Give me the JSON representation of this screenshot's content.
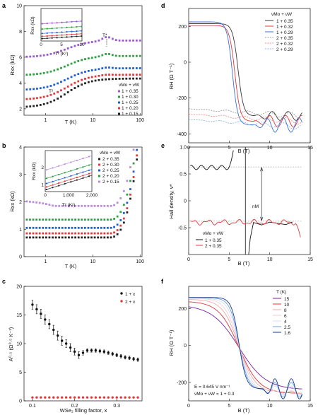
{
  "panels": {
    "a": "a",
    "b": "b",
    "c": "c",
    "d": "d",
    "e": "e",
    "f": "f"
  },
  "chart_data": [
    {
      "panel": "a",
      "type": "scatter",
      "xlabel": "T (K)",
      "ylabel": "Rxx (kΩ)",
      "xscale": "log",
      "xlim": [
        0.35,
        110
      ],
      "ylim": [
        1.5,
        10
      ],
      "xticks": [
        "1",
        "10",
        "100"
      ],
      "yticks": [
        "2",
        "4",
        "6",
        "8",
        "10"
      ],
      "legend_title": "νMo + νW",
      "legend_position": "right",
      "annotations": [
        "T*",
        "T²"
      ],
      "series": [
        {
          "name": "1 + 0.35",
          "color": "#9b59d0",
          "base": 6.0,
          "high": 7.3,
          "bump": 0.3
        },
        {
          "name": "1 + 0.30",
          "color": "#2ea043",
          "base": 4.6,
          "high": 6.1,
          "bump": 0.2
        },
        {
          "name": "1 + 0.25",
          "color": "#1f5fd6",
          "base": 3.45,
          "high": 5.15,
          "bump": 0.1
        },
        {
          "name": "1 + 0.20",
          "color": "#e0383b",
          "base": 2.7,
          "high": 4.65,
          "bump": 0.05
        },
        {
          "name": "1 + 0.15",
          "color": "#222222",
          "base": 2.1,
          "high": 4.35,
          "bump": 0
        }
      ],
      "inset": {
        "xlabel": "T² (K²)",
        "ylabel": "Rxx (kΩ)",
        "xticks": [
          "0",
          "5",
          "10"
        ],
        "xlim": [
          0,
          10
        ],
        "ylim": [
          1.5,
          10
        ]
      }
    },
    {
      "panel": "b",
      "type": "scatter",
      "xlabel": "T (K)",
      "ylabel": "Rxx (kΩ)",
      "xscale": "log",
      "xlim": [
        0.35,
        110
      ],
      "ylim": [
        0,
        4
      ],
      "xticks": [
        "1",
        "10",
        "100"
      ],
      "yticks": [
        "0",
        "1",
        "2",
        "3",
        "4"
      ],
      "legend_title": "νMo + νW",
      "series": [
        {
          "name": "2 + 0.35",
          "color": "#222222",
          "base": 0.7
        },
        {
          "name": "2 + 0.30",
          "color": "#e0383b",
          "base": 0.85
        },
        {
          "name": "2 + 0.25",
          "color": "#1f5fd6",
          "base": 1.05
        },
        {
          "name": "2 + 0.20",
          "color": "#2ea043",
          "base": 1.35
        },
        {
          "name": "2 + 0.15",
          "color": "#b98ce0",
          "base": 1.85
        }
      ],
      "inset": {
        "xlabel": "T² (K²)",
        "ylabel": "Rxx (kΩ)",
        "xticks": [
          "0",
          "1,000",
          "2,000"
        ],
        "yticks": [
          "1",
          "2"
        ],
        "xlim": [
          0,
          2000
        ]
      }
    },
    {
      "panel": "c",
      "type": "scatter",
      "xlabel": "WSe₂ filling factor, x",
      "ylabel": "A⁰·⁵ (Ω⁰·⁵ K⁻¹)",
      "xlim": [
        0.08,
        0.36
      ],
      "ylim": [
        0,
        20
      ],
      "xticks": [
        "0.1",
        "0.2",
        "0.3"
      ],
      "yticks": [
        "0",
        "5",
        "10",
        "15",
        "20"
      ],
      "legend_position": "top-right",
      "series": [
        {
          "name": "1 + x",
          "color": "#111111",
          "x": [
            0.1,
            0.11,
            0.12,
            0.13,
            0.14,
            0.15,
            0.16,
            0.17,
            0.18,
            0.19,
            0.2,
            0.21,
            0.22,
            0.23,
            0.24,
            0.25,
            0.26,
            0.27,
            0.28,
            0.29,
            0.3,
            0.31,
            0.32,
            0.33,
            0.34,
            0.35
          ],
          "y": [
            16.8,
            16.0,
            15.2,
            14.2,
            13.4,
            12.4,
            11.4,
            10.5,
            10.0,
            9.3,
            8.6,
            8.0,
            8.4,
            8.8,
            8.8,
            8.8,
            8.7,
            8.6,
            8.4,
            8.2,
            8.0,
            7.8,
            7.6,
            7.5,
            7.3,
            7.2
          ],
          "err": [
            0.8,
            0.8,
            0.8,
            0.8,
            0.8,
            0.8,
            0.8,
            0.8,
            0.7,
            0.7,
            0.6,
            0.6,
            0.4,
            0.3,
            0.3,
            0.3,
            0.3,
            0.3,
            0.3,
            0.3,
            0.3,
            0.3,
            0.3,
            0.3,
            0.3,
            0.3
          ]
        },
        {
          "name": "2 + x",
          "color": "#e0383b",
          "x": [
            0.1,
            0.11,
            0.12,
            0.13,
            0.14,
            0.15,
            0.16,
            0.17,
            0.18,
            0.19,
            0.2,
            0.21,
            0.22,
            0.23,
            0.24,
            0.25,
            0.26,
            0.27,
            0.28,
            0.29,
            0.3,
            0.31,
            0.32,
            0.33,
            0.34,
            0.35
          ],
          "y": [
            0.6,
            0.6,
            0.6,
            0.6,
            0.6,
            0.6,
            0.6,
            0.6,
            0.6,
            0.6,
            0.6,
            0.6,
            0.6,
            0.6,
            0.6,
            0.6,
            0.6,
            0.6,
            0.6,
            0.6,
            0.6,
            0.6,
            0.6,
            0.6,
            0.6,
            0.6
          ]
        }
      ]
    },
    {
      "panel": "d",
      "type": "line",
      "xlabel": "B (T)",
      "ylabel": "RH (Ω T⁻¹)",
      "xlim": [
        0,
        15
      ],
      "ylim": [
        -450,
        300
      ],
      "xticks": [
        "0",
        "5",
        "10",
        "15"
      ],
      "yticks": [
        "-400",
        "-200",
        "0",
        "200"
      ],
      "legend_title": "νMo + νW",
      "legend_position": "top-right",
      "series": [
        {
          "name": "1 + 0.35",
          "color": "#3a3a3a",
          "dash": "",
          "start": 215,
          "end": -300,
          "bc": 6.1
        },
        {
          "name": "1 + 0.32",
          "color": "#e0383b",
          "dash": "",
          "start": 205,
          "end": -330,
          "bc": 5.7
        },
        {
          "name": "1 + 0.29",
          "color": "#3b6fd6",
          "dash": "",
          "start": 225,
          "end": -350,
          "bc": 5.4
        },
        {
          "name": "2 + 0.35",
          "color": "#9a9a9a",
          "dash": "2,1.5",
          "start": -260,
          "end": -300,
          "bc": 0
        },
        {
          "name": "2 + 0.32",
          "color": "#f08a8c",
          "dash": "2,1.5",
          "start": -290,
          "end": -330,
          "bc": 0
        },
        {
          "name": "2 + 0.29",
          "color": "#8fb3ee",
          "dash": "2,1.5",
          "start": -320,
          "end": -360,
          "bc": 0
        }
      ]
    },
    {
      "panel": "e",
      "type": "line",
      "xlabel": "B (T)",
      "ylabel": "Hall density, ν*",
      "xlim": [
        0,
        15
      ],
      "ylim": [
        -1.0,
        1.0
      ],
      "xticks": [
        "0",
        "5",
        "10",
        "15"
      ],
      "yticks": [
        "-0.5",
        "0",
        "0.5",
        "1.0"
      ],
      "legend_title": "νMo + νW",
      "legend_position": "bottom-left",
      "annotations": [
        "nM"
      ],
      "series": [
        {
          "name": "1 + 0.35",
          "color": "#111111"
        },
        {
          "name": "2 + 0.35",
          "color": "#e0383b"
        }
      ]
    },
    {
      "panel": "f",
      "type": "line",
      "xlabel": "B (T)",
      "ylabel": "RH (Ω T⁻¹)",
      "xlim": [
        0,
        15
      ],
      "ylim": [
        -300,
        320
      ],
      "xticks": [
        "0",
        "5",
        "10",
        "15"
      ],
      "yticks": [
        "-200",
        "0",
        "200"
      ],
      "legend_title": "T (K)",
      "legend_position": "top-right",
      "notes": [
        "E = 0.645 V nm⁻¹",
        "νMo + νW = 1 + 0.3"
      ],
      "series": [
        {
          "name": "15",
          "color": "#7b1fa2",
          "start": 220,
          "end": -240,
          "sharp": 0.6,
          "osc": 0
        },
        {
          "name": "10",
          "color": "#e0383b",
          "start": 240,
          "end": -260,
          "sharp": 0.8,
          "osc": 0
        },
        {
          "name": "8",
          "color": "#f0a8a8",
          "start": 250,
          "end": -255,
          "sharp": 1.0,
          "osc": 5
        },
        {
          "name": "6",
          "color": "#f6d0d0",
          "start": 255,
          "end": -255,
          "sharp": 1.2,
          "osc": 10
        },
        {
          "name": "4",
          "color": "#cfe0f7",
          "start": 255,
          "end": -245,
          "sharp": 1.5,
          "osc": 25
        },
        {
          "name": "2.5",
          "color": "#6ea0e6",
          "start": 258,
          "end": -240,
          "sharp": 1.8,
          "osc": 40
        },
        {
          "name": "1.6",
          "color": "#173a8c",
          "start": 260,
          "end": -235,
          "sharp": 2.2,
          "osc": 55
        }
      ]
    }
  ]
}
